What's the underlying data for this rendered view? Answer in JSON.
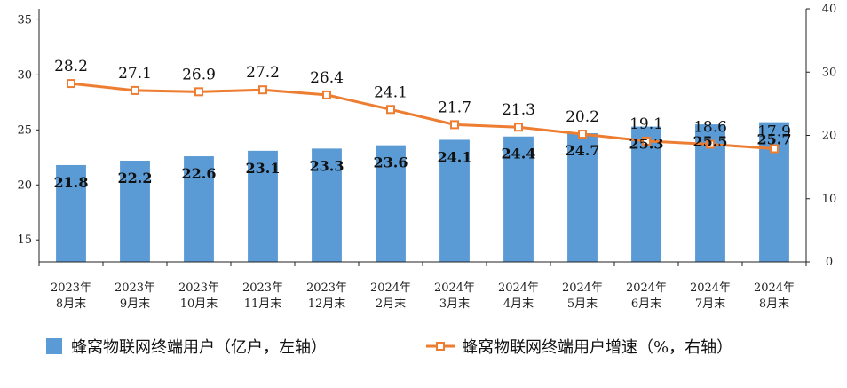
{
  "chart_data": {
    "type": "bar",
    "categories": [
      [
        "2023年",
        "8月末"
      ],
      [
        "2023年",
        "9月末"
      ],
      [
        "2023年",
        "10月末"
      ],
      [
        "2023年",
        "11月末"
      ],
      [
        "2023年",
        "12月末"
      ],
      [
        "2024年",
        "2月末"
      ],
      [
        "2024年",
        "3月末"
      ],
      [
        "2024年",
        "4月末"
      ],
      [
        "2024年",
        "5月末"
      ],
      [
        "2024年",
        "6月末"
      ],
      [
        "2024年",
        "7月末"
      ],
      [
        "2024年",
        "8月末"
      ]
    ],
    "series": [
      {
        "name": "蜂窝物联网终端用户（亿户，左轴）",
        "type": "bar",
        "axis": "left",
        "color": "#5B9BD5",
        "values": [
          21.8,
          22.2,
          22.6,
          23.1,
          23.3,
          23.6,
          24.1,
          24.4,
          24.7,
          25.3,
          25.5,
          25.7
        ],
        "labels": [
          "21.8",
          "22.2",
          "22.6",
          "23.1",
          "23.3",
          "23.6",
          "24.1",
          "24.4",
          "24.7",
          "25.3",
          "25.5",
          "25.7"
        ]
      },
      {
        "name": "蜂窝物联网终端用户增速（%，右轴）",
        "type": "line",
        "axis": "right",
        "color": "#ED7D31",
        "marker": "square-open",
        "values": [
          28.2,
          27.1,
          26.9,
          27.2,
          26.4,
          24.1,
          21.7,
          21.3,
          20.2,
          19.1,
          18.6,
          17.9
        ],
        "labels": [
          "28.2",
          "27.1",
          "26.9",
          "27.2",
          "26.4",
          "24.1",
          "21.7",
          "21.3",
          "20.2",
          "19.1",
          "18.6",
          "17.9"
        ]
      }
    ],
    "y_left": {
      "ylim": [
        13,
        36
      ],
      "ticks": [
        15,
        20,
        25,
        30,
        35
      ],
      "tick_labels": [
        "15",
        "20",
        "25",
        "30",
        "35"
      ]
    },
    "y_right": {
      "ylim": [
        0,
        40
      ],
      "ticks": [
        0,
        10,
        20,
        30,
        40
      ],
      "tick_labels": [
        "0",
        "10",
        "20",
        "30",
        "40"
      ]
    },
    "title": "",
    "xlabel": "",
    "grid": false,
    "legend_position": "bottom"
  }
}
